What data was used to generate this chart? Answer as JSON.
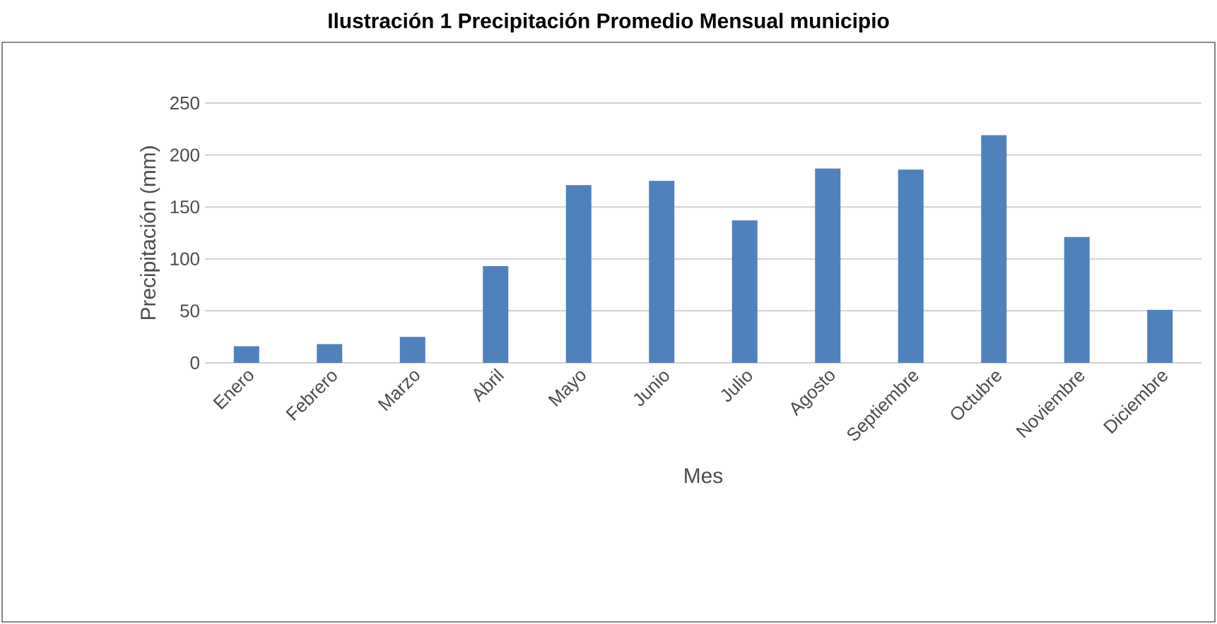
{
  "chart_data": {
    "type": "bar",
    "title": "Ilustración 1 Precipitación Promedio Mensual municipio",
    "xlabel": "Mes",
    "ylabel": "Precipitación (mm)",
    "categories": [
      "Enero",
      "Febrero",
      "Marzo",
      "Abril",
      "Mayo",
      "Junio",
      "Julio",
      "Agosto",
      "Septiembre",
      "Octubre",
      "Noviembre",
      "Diciembre"
    ],
    "values": [
      16,
      18,
      25,
      93,
      171,
      175,
      137,
      187,
      186,
      219,
      121,
      51
    ],
    "color": "#4f81bd",
    "ylim": [
      0,
      250
    ],
    "yticks": [
      0,
      50,
      100,
      150,
      200,
      250
    ],
    "grid": "y"
  }
}
